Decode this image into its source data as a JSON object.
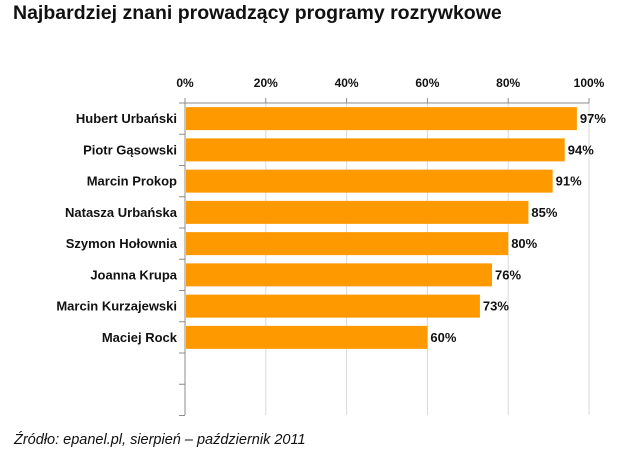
{
  "chart_data": {
    "type": "bar",
    "orientation": "horizontal",
    "title": "Najbardziej znani prowadzący programy rozrywkowe",
    "categories": [
      "Hubert Urbański",
      "Piotr Gąsowski",
      "Marcin Prokop",
      "Natasza Urbańska",
      "Szymon Hołownia",
      "Joanna Krupa",
      "Marcin Kurzajewski",
      "Maciej Rock"
    ],
    "values": [
      97,
      94,
      91,
      85,
      80,
      76,
      73,
      60
    ],
    "value_labels": [
      "97%",
      "94%",
      "91%",
      "85%",
      "80%",
      "76%",
      "73%",
      "60%"
    ],
    "xlim": [
      0,
      100
    ],
    "xticks": [
      0,
      20,
      40,
      60,
      80,
      100
    ],
    "xtick_labels": [
      "0%",
      "20%",
      "40%",
      "60%",
      "80%",
      "100%"
    ],
    "xaxis_position": "top",
    "grid": true,
    "legend": "none",
    "bar_color": "#FF9900",
    "source": "Źródło: epanel.pl, sierpień – październik 2011"
  }
}
